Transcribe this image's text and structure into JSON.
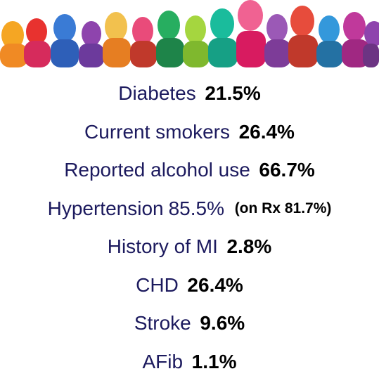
{
  "rows": [
    {
      "label": "Diabetes",
      "value": "21.5%"
    },
    {
      "label": "Current smokers",
      "value": "26.4%"
    },
    {
      "label": "Reported alcohol use",
      "value": "66.7%"
    },
    {
      "label": "Hypertension",
      "value": "85.5%",
      "note": "(on Rx 81.7%)"
    },
    {
      "label": "History of MI",
      "value": "2.8%"
    },
    {
      "label": "CHD",
      "value": "26.4%"
    },
    {
      "label": "Stroke",
      "value": "9.6%"
    },
    {
      "label": "AFib",
      "value": "1.1%"
    }
  ]
}
